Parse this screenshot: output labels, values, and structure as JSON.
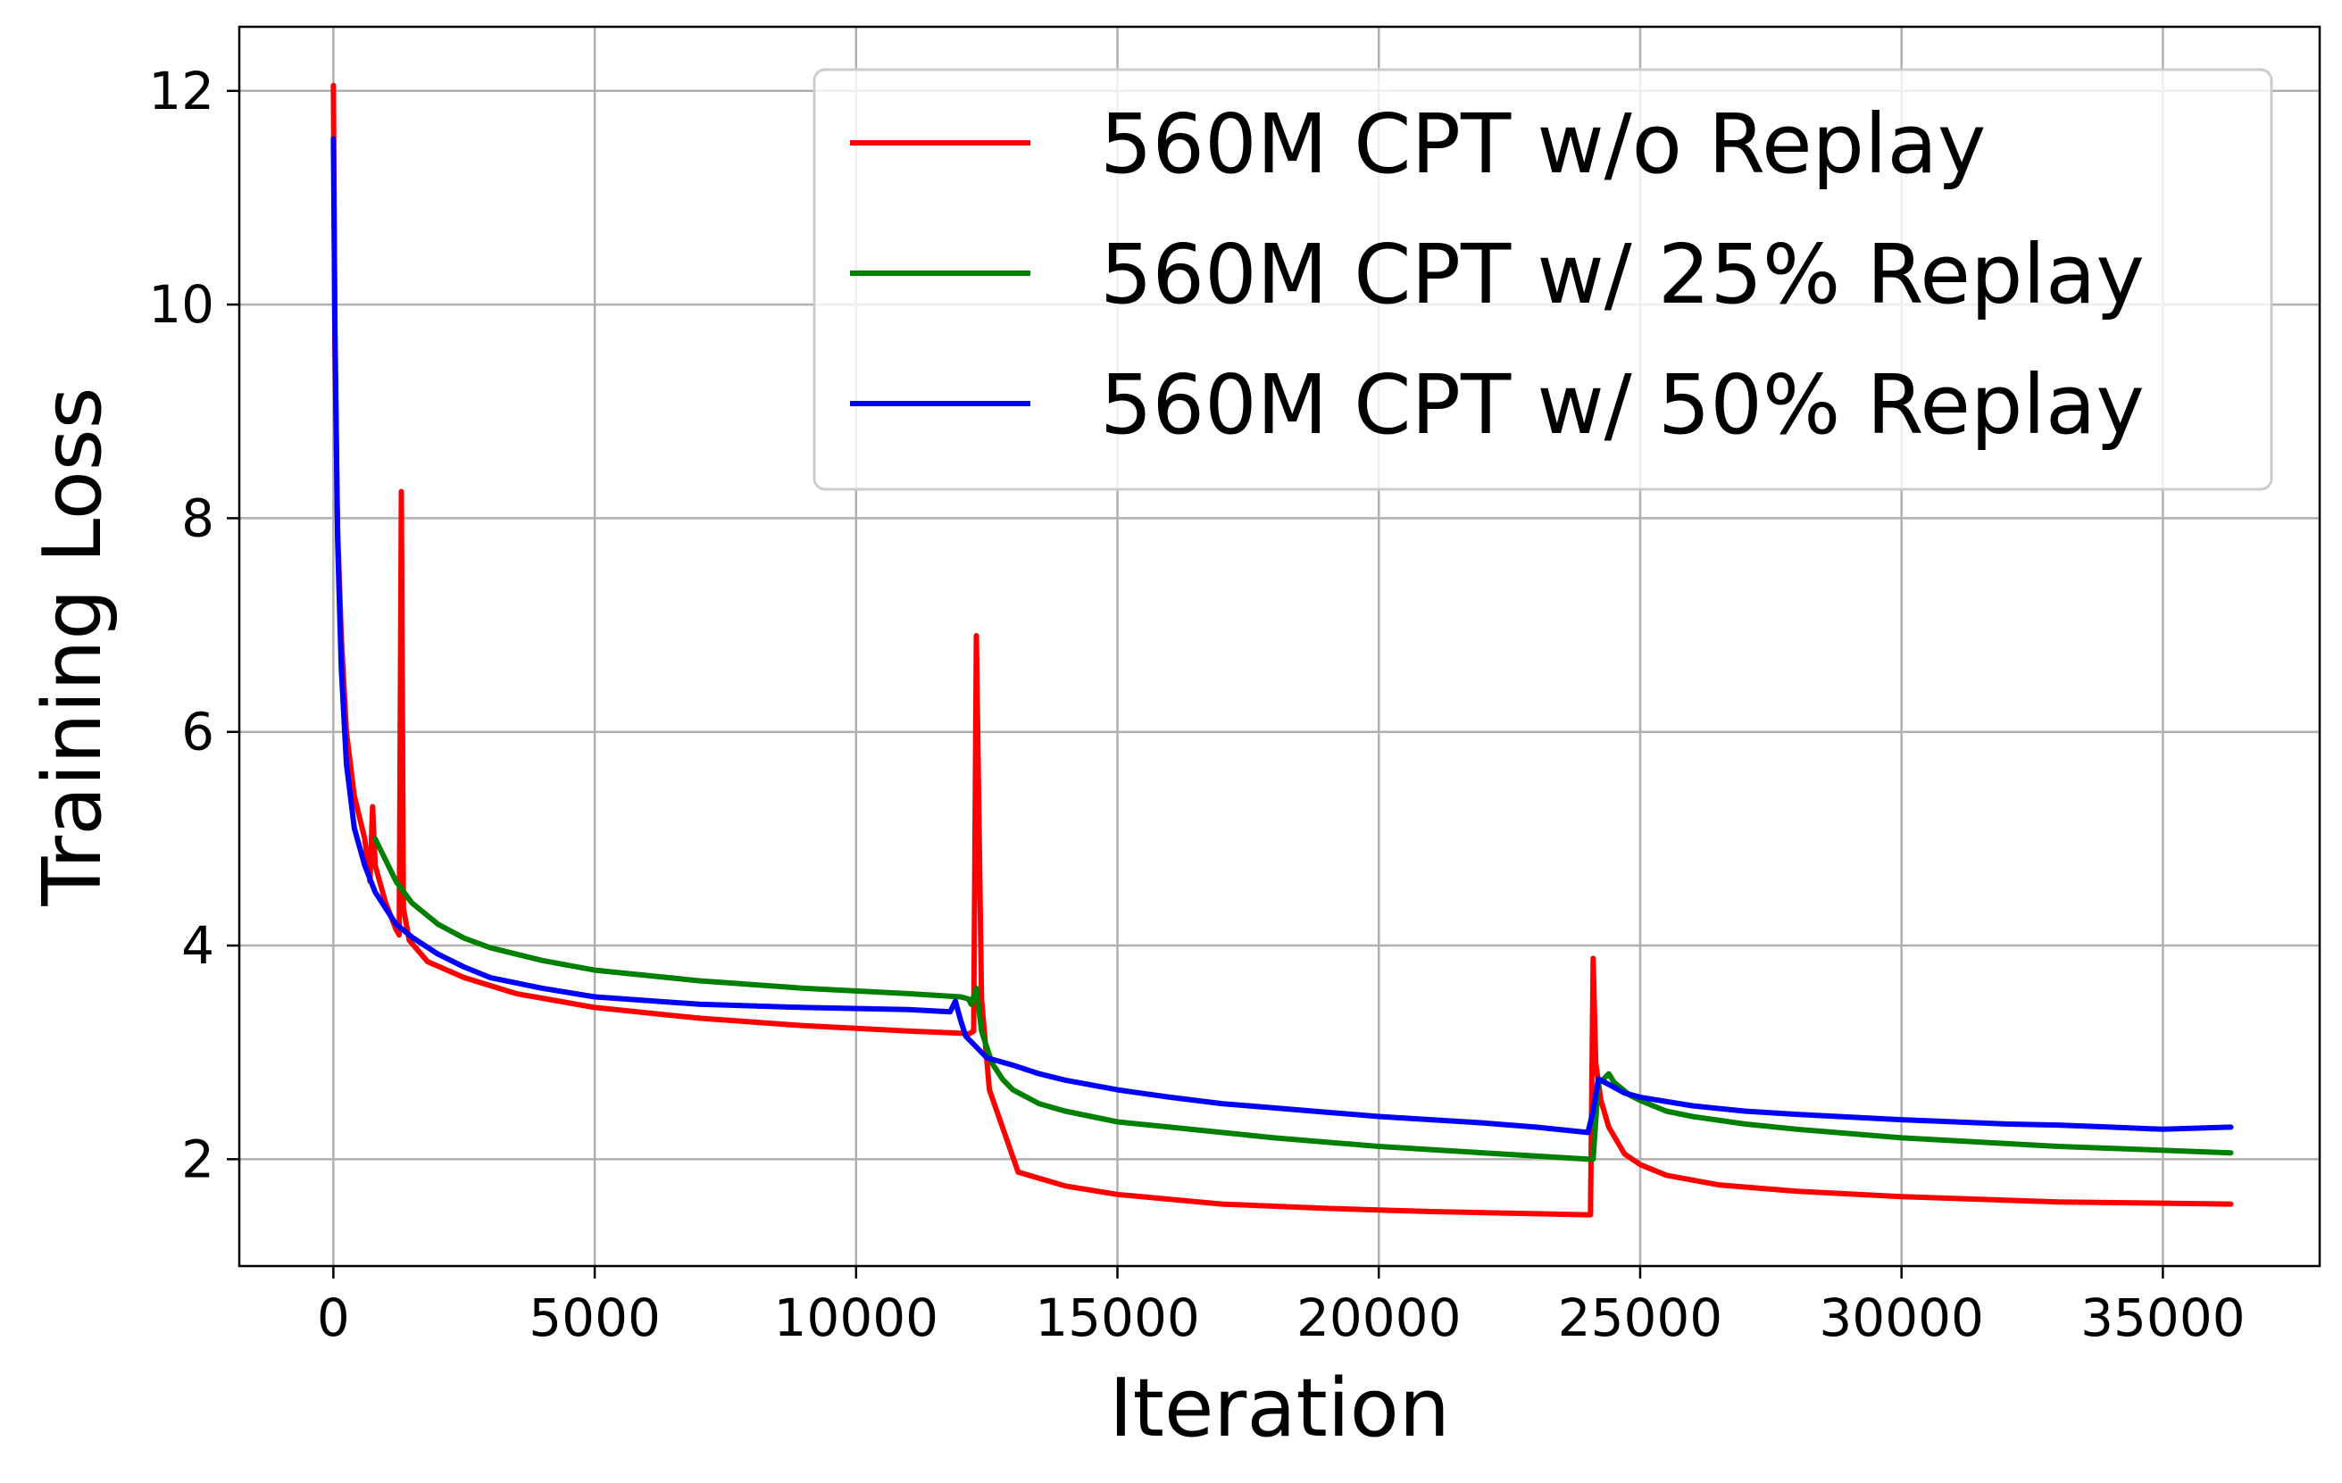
{
  "chart_data": {
    "type": "line",
    "title": "",
    "xlabel": "Iteration",
    "ylabel": "Training Loss",
    "xlim": [
      -1800,
      38000
    ],
    "ylim": [
      1.0,
      12.6
    ],
    "xticks": [
      0,
      5000,
      10000,
      15000,
      20000,
      25000,
      30000,
      35000
    ],
    "xtick_labels": [
      "0",
      "5000",
      "10000",
      "15000",
      "20000",
      "25000",
      "30000",
      "35000"
    ],
    "yticks": [
      2,
      4,
      6,
      8,
      10,
      12
    ],
    "ytick_labels": [
      "2",
      "4",
      "6",
      "8",
      "10",
      "12"
    ],
    "grid": true,
    "legend_position": "top-right",
    "series": [
      {
        "name": "560M CPT w/o Replay",
        "color": "#ff0000",
        "x": [
          0,
          30,
          80,
          150,
          250,
          400,
          600,
          700,
          750,
          800,
          1000,
          1200,
          1260,
          1300,
          1340,
          1450,
          1800,
          2500,
          3500,
          5000,
          7000,
          9000,
          11000,
          12000,
          12150,
          12250,
          12300,
          12400,
          12550,
          13100,
          13300,
          14000,
          15000,
          17000,
          19000,
          21000,
          23000,
          24000,
          24050,
          24100,
          24150,
          24250,
          24400,
          24700,
          25000,
          25500,
          26500,
          28000,
          30000,
          33000,
          36300
        ],
        "y": [
          12.05,
          9.6,
          7.9,
          6.9,
          6.0,
          5.4,
          5.0,
          4.6,
          5.3,
          4.75,
          4.4,
          4.15,
          4.1,
          8.25,
          4.35,
          4.05,
          3.85,
          3.7,
          3.55,
          3.42,
          3.32,
          3.25,
          3.2,
          3.18,
          3.17,
          3.2,
          6.9,
          3.5,
          2.65,
          1.88,
          1.85,
          1.75,
          1.67,
          1.58,
          1.54,
          1.51,
          1.49,
          1.48,
          1.48,
          3.88,
          2.9,
          2.55,
          2.3,
          2.05,
          1.95,
          1.85,
          1.76,
          1.7,
          1.65,
          1.6,
          1.58
        ]
      },
      {
        "name": "560M CPT w/ 25% Replay",
        "color": "#008000",
        "x": [
          800,
          1000,
          1200,
          1500,
          2000,
          2500,
          3000,
          4000,
          5000,
          7000,
          9000,
          11000,
          12000,
          12150,
          12200,
          12300,
          12400,
          12600,
          12800,
          13000,
          13500,
          14000,
          15000,
          16000,
          17000,
          18000,
          19000,
          20000,
          21000,
          22000,
          23000,
          24000,
          24100,
          24200,
          24300,
          24400,
          24500,
          24800,
          25000,
          25500,
          26000,
          27000,
          28000,
          30000,
          33000,
          36300
        ],
        "y": [
          5.0,
          4.8,
          4.6,
          4.4,
          4.2,
          4.07,
          3.98,
          3.86,
          3.77,
          3.67,
          3.6,
          3.55,
          3.52,
          3.5,
          3.45,
          3.6,
          3.2,
          2.9,
          2.75,
          2.65,
          2.52,
          2.45,
          2.35,
          2.3,
          2.25,
          2.2,
          2.16,
          2.12,
          2.09,
          2.06,
          2.03,
          2.0,
          2.0,
          2.72,
          2.75,
          2.8,
          2.72,
          2.6,
          2.55,
          2.45,
          2.4,
          2.33,
          2.28,
          2.2,
          2.12,
          2.06
        ]
      },
      {
        "name": "560M CPT w/ 50% Replay",
        "color": "#0000ff",
        "x": [
          0,
          30,
          80,
          150,
          250,
          400,
          600,
          800,
          1000,
          1200,
          1500,
          2000,
          2500,
          3000,
          4000,
          5000,
          7000,
          9000,
          11000,
          11800,
          11900,
          12000,
          12100,
          12300,
          12500,
          13000,
          13500,
          14000,
          15000,
          16000,
          17000,
          18000,
          19000,
          20000,
          21000,
          22000,
          23000,
          24000,
          24100,
          24200,
          24400,
          24700,
          25000,
          26000,
          27000,
          28000,
          30000,
          32000,
          33000,
          34000,
          35000,
          36300
        ],
        "y": [
          11.55,
          9.8,
          7.8,
          6.6,
          5.7,
          5.1,
          4.75,
          4.5,
          4.35,
          4.2,
          4.08,
          3.92,
          3.8,
          3.7,
          3.6,
          3.52,
          3.45,
          3.42,
          3.4,
          3.38,
          3.48,
          3.3,
          3.15,
          3.05,
          2.95,
          2.88,
          2.8,
          2.74,
          2.65,
          2.58,
          2.52,
          2.48,
          2.44,
          2.4,
          2.37,
          2.34,
          2.3,
          2.25,
          2.45,
          2.75,
          2.7,
          2.62,
          2.58,
          2.5,
          2.45,
          2.42,
          2.37,
          2.33,
          2.32,
          2.3,
          2.28,
          2.3
        ]
      }
    ]
  }
}
